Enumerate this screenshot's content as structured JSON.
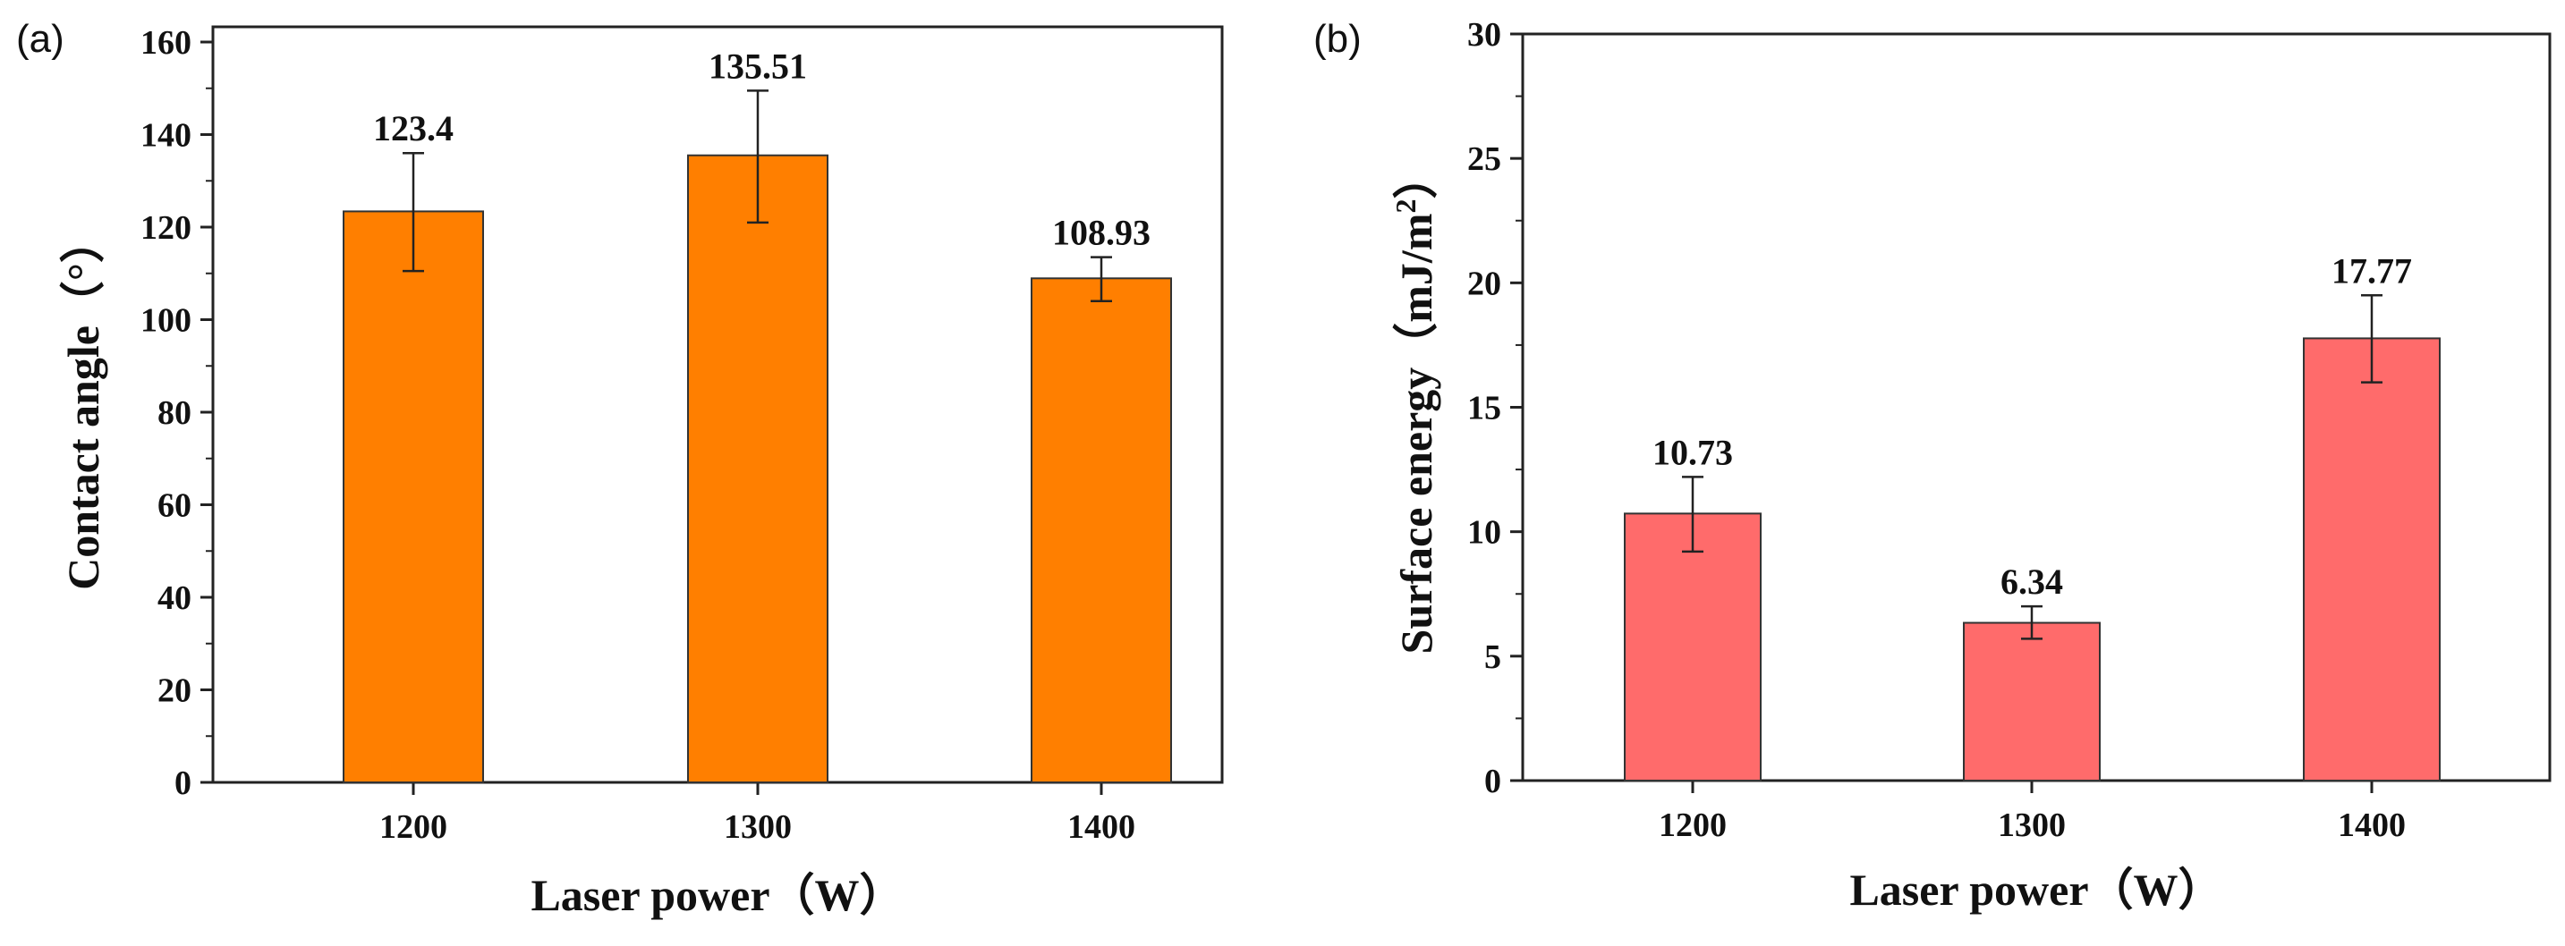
{
  "chart_data": [
    {
      "panel": "(a)",
      "type": "bar",
      "categories": [
        "1200",
        "1300",
        "1400"
      ],
      "values": [
        123.4,
        135.51,
        108.93
      ],
      "value_labels": [
        "123.4",
        "135.51",
        "108.93"
      ],
      "error_low": [
        110.5,
        121.0,
        104.0
      ],
      "error_high": [
        136.0,
        149.5,
        113.5
      ],
      "xlabel": "Laser power（W）",
      "ylabel": "Contact angle（°）",
      "ylim": [
        0,
        170
      ],
      "yticks": [
        0,
        20,
        40,
        60,
        80,
        100,
        120,
        140,
        160
      ],
      "bar_color": "#ff7f00",
      "grid": false
    },
    {
      "panel": "(b)",
      "type": "bar",
      "categories": [
        "1200",
        "1300",
        "1400"
      ],
      "values": [
        10.73,
        6.34,
        17.77
      ],
      "value_labels": [
        "10.73",
        "6.34",
        "17.77"
      ],
      "error_low": [
        9.2,
        5.7,
        16.0
      ],
      "error_high": [
        12.2,
        7.0,
        19.5
      ],
      "xlabel": "Laser power（W）",
      "ylabel_main": "Surface energy（mJ/m",
      "ylabel_sup": "2",
      "ylabel_end": "）",
      "ylim": [
        0,
        30
      ],
      "yticks": [
        0,
        5,
        10,
        15,
        20,
        25,
        30
      ],
      "bar_color": "#ff6b6b",
      "grid": false
    }
  ]
}
